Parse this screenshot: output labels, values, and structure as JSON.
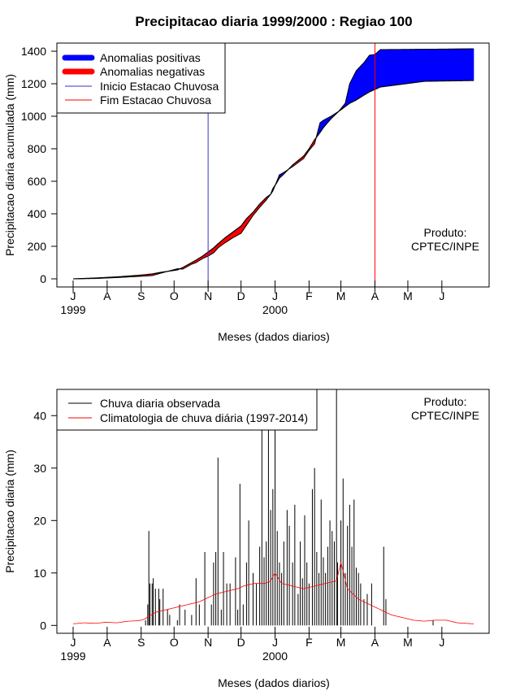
{
  "title": "Precipitacao diaria 1999/2000 : Regiao 100",
  "colors": {
    "positive": "#0000ff",
    "negative": "#ff0000",
    "onset": "#3333cc",
    "end": "#ff0000",
    "observed": "#000000",
    "climatology": "#ff0000"
  },
  "chart_data": [
    {
      "type": "area",
      "name": "accumulated",
      "ylabel": "Precipitacao diaria acumulada (mm)",
      "xlabel": "Meses (dados diarios)",
      "xlim": [
        0,
        365
      ],
      "ylim": [
        -50,
        1450
      ],
      "yticks": [
        0,
        200,
        400,
        600,
        800,
        1000,
        1200,
        1400
      ],
      "month_ticks": [
        {
          "label": "J",
          "day": 0
        },
        {
          "label": "A",
          "day": 31
        },
        {
          "label": "S",
          "day": 62
        },
        {
          "label": "O",
          "day": 92
        },
        {
          "label": "N",
          "day": 123
        },
        {
          "label": "D",
          "day": 153
        },
        {
          "label": "J",
          "day": 184
        },
        {
          "label": "F",
          "day": 215
        },
        {
          "label": "M",
          "day": 244
        },
        {
          "label": "A",
          "day": 275
        },
        {
          "label": "M",
          "day": 305
        },
        {
          "label": "J",
          "day": 336
        }
      ],
      "year_labels": [
        {
          "label": "1999",
          "day": 0
        },
        {
          "label": "2000",
          "day": 184
        }
      ],
      "onset_day": 123,
      "end_day": 275,
      "legend": {
        "positive": "Anomalias positivas",
        "negative": "Anomalias negativas",
        "onset": "Inicio Estacao Chuvosa",
        "end": "Fim Estacao Chuvosa"
      },
      "annotation": [
        "Produto:",
        "CPTEC/INPE"
      ],
      "observed": {
        "days": [
          0,
          20,
          40,
          60,
          72,
          80,
          95,
          100,
          108,
          112,
          118,
          123,
          128,
          132,
          138,
          145,
          153,
          158,
          164,
          170,
          176,
          180,
          182,
          185,
          188,
          192,
          200,
          210,
          215,
          220,
          225,
          228,
          235,
          242,
          248,
          252,
          258,
          265,
          270,
          275,
          280,
          320,
          365
        ],
        "values": [
          0,
          2,
          8,
          15,
          20,
          35,
          62,
          60,
          90,
          100,
          125,
          140,
          160,
          190,
          220,
          250,
          280,
          330,
          390,
          440,
          485,
          520,
          540,
          590,
          640,
          655,
          690,
          740,
          790,
          830,
          960,
          975,
          1000,
          1030,
          1080,
          1200,
          1280,
          1330,
          1375,
          1380,
          1410,
          1412,
          1415
        ]
      },
      "climatology": {
        "days": [
          0,
          20,
          40,
          60,
          72,
          80,
          95,
          100,
          108,
          112,
          118,
          123,
          128,
          132,
          138,
          145,
          153,
          158,
          164,
          170,
          176,
          180,
          182,
          185,
          188,
          192,
          200,
          210,
          215,
          220,
          225,
          228,
          235,
          242,
          248,
          252,
          258,
          265,
          270,
          275,
          280,
          320,
          365
        ],
        "values": [
          0,
          5,
          12,
          22,
          30,
          40,
          55,
          70,
          100,
          115,
          140,
          165,
          190,
          215,
          250,
          285,
          325,
          370,
          410,
          460,
          500,
          520,
          555,
          585,
          620,
          645,
          700,
          755,
          800,
          855,
          900,
          930,
          985,
          1030,
          1060,
          1080,
          1100,
          1130,
          1150,
          1165,
          1180,
          1215,
          1220
        ]
      }
    },
    {
      "type": "bar",
      "name": "daily",
      "ylabel": "Precipitacao diaria (mm)",
      "xlabel": "Meses (dados diarios)",
      "xlim": [
        0,
        365
      ],
      "ylim": [
        -1.5,
        45
      ],
      "yticks": [
        0,
        10,
        20,
        30,
        40
      ],
      "legend": {
        "observed": "Chuva diaria observada",
        "climatology": "Climatologia de chuva diária (1997-2014)"
      },
      "annotation": [
        "Produto:",
        "CPTEC/INPE"
      ],
      "observed_daily": {
        "days": [
          66,
          68,
          69,
          70,
          72,
          73,
          75,
          78,
          79,
          82,
          86,
          88,
          95,
          97,
          102,
          108,
          112,
          115,
          120,
          126,
          128,
          130,
          132,
          135,
          137,
          140,
          143,
          148,
          150,
          152,
          155,
          158,
          160,
          164,
          167,
          170,
          172,
          174,
          176,
          178,
          180,
          182,
          184,
          186,
          188,
          190,
          192,
          195,
          197,
          200,
          202,
          205,
          207,
          209,
          211,
          213,
          215,
          218,
          220,
          222,
          224,
          226,
          228,
          230,
          232,
          234,
          236,
          238,
          240,
          241,
          244,
          246,
          248,
          250,
          252,
          254,
          256,
          258,
          260,
          262,
          265,
          268,
          272,
          283,
          285,
          328
        ],
        "values": [
          1,
          4,
          18,
          8,
          8,
          9,
          7,
          7,
          5,
          7,
          3,
          2,
          1,
          4,
          3,
          2,
          9,
          4,
          14,
          4,
          12,
          14,
          32,
          3,
          14,
          8,
          8,
          13,
          3,
          27,
          4,
          12,
          20,
          10,
          8,
          15,
          40,
          13,
          16,
          45,
          22,
          26,
          38,
          18,
          12,
          10,
          16,
          22,
          19,
          12,
          23,
          6,
          16,
          9,
          21,
          12,
          8,
          26,
          30,
          14,
          10,
          24,
          13,
          10,
          15,
          20,
          18,
          16,
          45,
          12,
          20,
          28,
          10,
          19,
          23,
          15,
          24,
          11,
          10,
          8,
          5,
          6,
          8,
          15,
          5,
          1
        ]
      },
      "climatology_daily": {
        "days": [
          0,
          10,
          20,
          30,
          40,
          50,
          60,
          65,
          75,
          85,
          95,
          105,
          115,
          120,
          125,
          130,
          140,
          150,
          155,
          165,
          175,
          180,
          184,
          190,
          200,
          210,
          220,
          230,
          240,
          244,
          250,
          260,
          270,
          280,
          290,
          300,
          310,
          320,
          330,
          340,
          350,
          365
        ],
        "values": [
          0.3,
          0.5,
          0.4,
          0.6,
          0.5,
          0.8,
          0.9,
          1.2,
          2.5,
          3.0,
          3.5,
          4.0,
          4.5,
          5.0,
          5.5,
          6.0,
          6.5,
          7.0,
          7.5,
          8.0,
          8.0,
          8.5,
          10.0,
          8.0,
          7.5,
          7.0,
          7.5,
          8.0,
          8.5,
          12.0,
          7.0,
          5.0,
          4.0,
          3.0,
          2.0,
          1.5,
          1.0,
          0.8,
          1.0,
          1.0,
          0.5,
          0.3
        ]
      }
    }
  ]
}
